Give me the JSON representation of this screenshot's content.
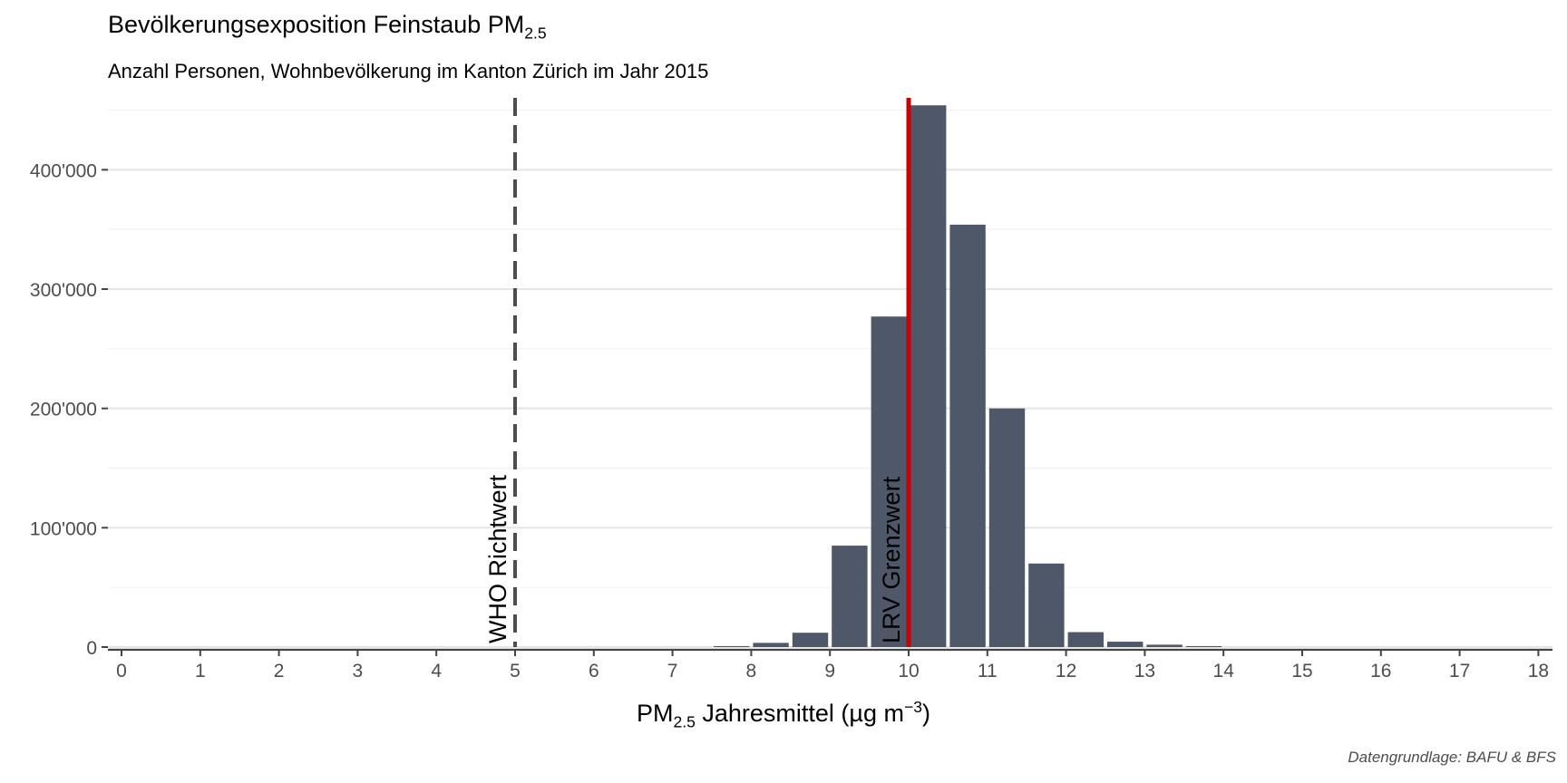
{
  "title": {
    "main": "Bevölkerungsexposition Feinstaub PM",
    "sub": "2.5"
  },
  "subtitle": "Anzahl Personen, Wohnbevölkerung im Kanton Zürich im Jahr 2015",
  "xlabel": {
    "pre": "PM",
    "sub": "2.5",
    "mid": " Jahresmittel (µg m",
    "sup": "−3",
    "post": ")"
  },
  "caption": "Datengrundlage: BAFU & BFS",
  "colors": {
    "bar": "#4f5869",
    "limit_line": "#cc0000",
    "guideline_line": "#4d4d4d",
    "grid_major": "#e6e6e6",
    "grid_minor": "#f2f2f2",
    "axis": "#444444",
    "tick_label": "#4d4d4d"
  },
  "chart_data": {
    "type": "bar",
    "x_axis": {
      "min": 0,
      "max": 18,
      "ticks": [
        0,
        1,
        2,
        3,
        4,
        5,
        6,
        7,
        8,
        9,
        10,
        11,
        12,
        13,
        14,
        15,
        16,
        17,
        18
      ],
      "tick_labels": [
        "0",
        "1",
        "2",
        "3",
        "4",
        "5",
        "6",
        "7",
        "8",
        "9",
        "10",
        "11",
        "12",
        "13",
        "14",
        "15",
        "16",
        "17",
        "18"
      ]
    },
    "y_axis": {
      "ylim": [
        0,
        458000
      ],
      "ticks": [
        0,
        100000,
        200000,
        300000,
        400000
      ],
      "tick_labels": [
        "0",
        "100'000",
        "200'000",
        "300'000",
        "400'000"
      ],
      "minor_ticks": [
        50000,
        150000,
        250000,
        350000,
        450000
      ]
    },
    "bin_width": 0.5,
    "bins": [
      {
        "x": 7.75,
        "value": 800
      },
      {
        "x": 8.25,
        "value": 3500
      },
      {
        "x": 8.75,
        "value": 12000
      },
      {
        "x": 9.25,
        "value": 85000
      },
      {
        "x": 9.75,
        "value": 277000
      },
      {
        "x": 10.25,
        "value": 454000
      },
      {
        "x": 10.75,
        "value": 354000
      },
      {
        "x": 11.25,
        "value": 200000
      },
      {
        "x": 11.75,
        "value": 70000
      },
      {
        "x": 12.25,
        "value": 12500
      },
      {
        "x": 12.75,
        "value": 4500
      },
      {
        "x": 13.25,
        "value": 2000
      },
      {
        "x": 13.75,
        "value": 800
      }
    ],
    "reference_lines": [
      {
        "x": 5,
        "label": "WHO Richtwert",
        "style": "dashed"
      },
      {
        "x": 10,
        "label": "LRV Grenzwert",
        "style": "solid"
      }
    ],
    "grid": true
  }
}
